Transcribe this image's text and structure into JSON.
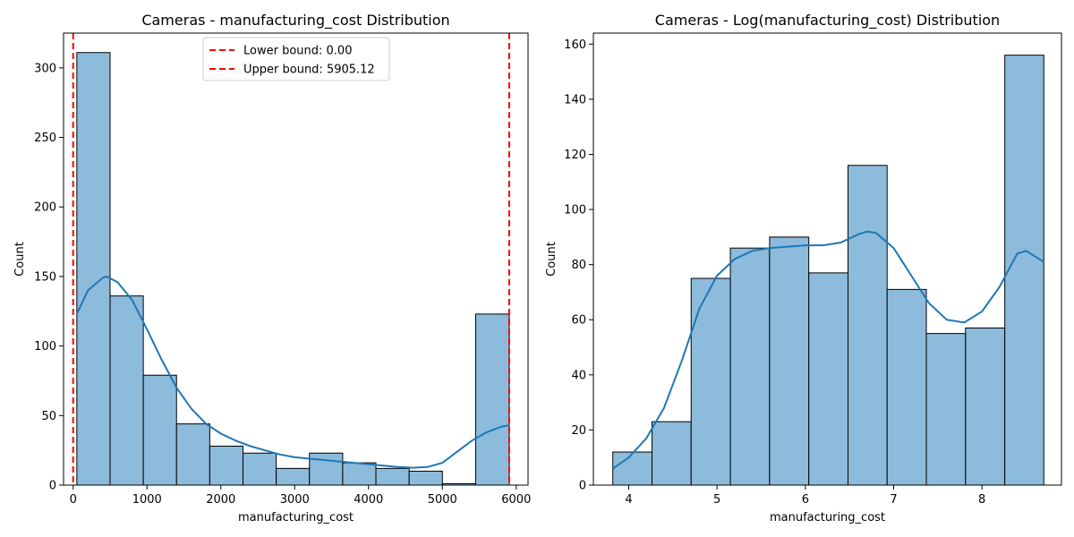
{
  "chart_data": [
    {
      "type": "histogram",
      "title": "Cameras - manufacturing_cost Distribution",
      "xlabel": "manufacturing_cost",
      "ylabel": "Count",
      "xlim": [
        -130,
        6160
      ],
      "ylim": [
        0,
        325
      ],
      "xticks": [
        0,
        1000,
        2000,
        3000,
        4000,
        5000,
        6000
      ],
      "yticks": [
        0,
        50,
        100,
        150,
        200,
        250,
        300
      ],
      "bin_edges": [
        50,
        500,
        950,
        1400,
        1850,
        2300,
        2750,
        3200,
        3650,
        4100,
        4550,
        5000,
        5450,
        5905
      ],
      "counts": [
        311,
        136,
        79,
        44,
        28,
        23,
        12,
        23,
        16,
        12,
        10,
        1,
        123
      ],
      "kde": {
        "x": [
          50,
          200,
          400,
          450,
          600,
          800,
          1000,
          1200,
          1400,
          1600,
          1800,
          2000,
          2200,
          2400,
          2600,
          2800,
          3000,
          3200,
          3400,
          3600,
          3800,
          4000,
          4200,
          4400,
          4600,
          4800,
          5000,
          5200,
          5400,
          5600,
          5800,
          5905
        ],
        "y": [
          123,
          140,
          149,
          150,
          146,
          133,
          112,
          90,
          70,
          55,
          44,
          37,
          32,
          28,
          25,
          22,
          20,
          19,
          18,
          17,
          16,
          15,
          14,
          13,
          12.5,
          13,
          16,
          24,
          32,
          38,
          42,
          43
        ]
      },
      "vlines": [
        {
          "label": "Lower bound: 0.00",
          "x": 0,
          "color": "#ff0000"
        },
        {
          "label": "Upper bound: 5905.12",
          "x": 5905.12,
          "color": "#ff0000"
        }
      ],
      "legend_position": "upper center",
      "bar_color": "#8dbbdb",
      "line_color": "#1f77b4"
    },
    {
      "type": "histogram",
      "title": "Cameras - Log(manufacturing_cost) Distribution",
      "xlabel": "manufacturing_cost",
      "ylabel": "Count",
      "xlim": [
        3.6,
        8.9
      ],
      "ylim": [
        0,
        164
      ],
      "xticks": [
        4,
        5,
        6,
        7,
        8
      ],
      "yticks": [
        0,
        20,
        40,
        60,
        80,
        100,
        120,
        140,
        160
      ],
      "bin_edges": [
        3.82,
        4.264,
        4.707,
        5.151,
        5.595,
        6.039,
        6.483,
        6.926,
        7.37,
        7.814,
        8.258,
        8.7
      ],
      "counts": [
        12,
        23,
        75,
        86,
        90,
        77,
        116,
        71,
        55,
        57,
        156
      ],
      "kde": {
        "x": [
          3.82,
          4.0,
          4.2,
          4.4,
          4.6,
          4.8,
          5.0,
          5.2,
          5.4,
          5.6,
          5.8,
          6.0,
          6.2,
          6.4,
          6.6,
          6.7,
          6.8,
          7.0,
          7.2,
          7.4,
          7.6,
          7.8,
          8.0,
          8.2,
          8.4,
          8.5,
          8.6,
          8.7
        ],
        "y": [
          6,
          10,
          17,
          28,
          45,
          64,
          76,
          82,
          85,
          86,
          86.5,
          87,
          87,
          88,
          91,
          92,
          91.5,
          86,
          76,
          66,
          60,
          59,
          63,
          72,
          84,
          85,
          83,
          81
        ]
      },
      "bar_color": "#8dbbdb",
      "line_color": "#1f77b4"
    }
  ]
}
